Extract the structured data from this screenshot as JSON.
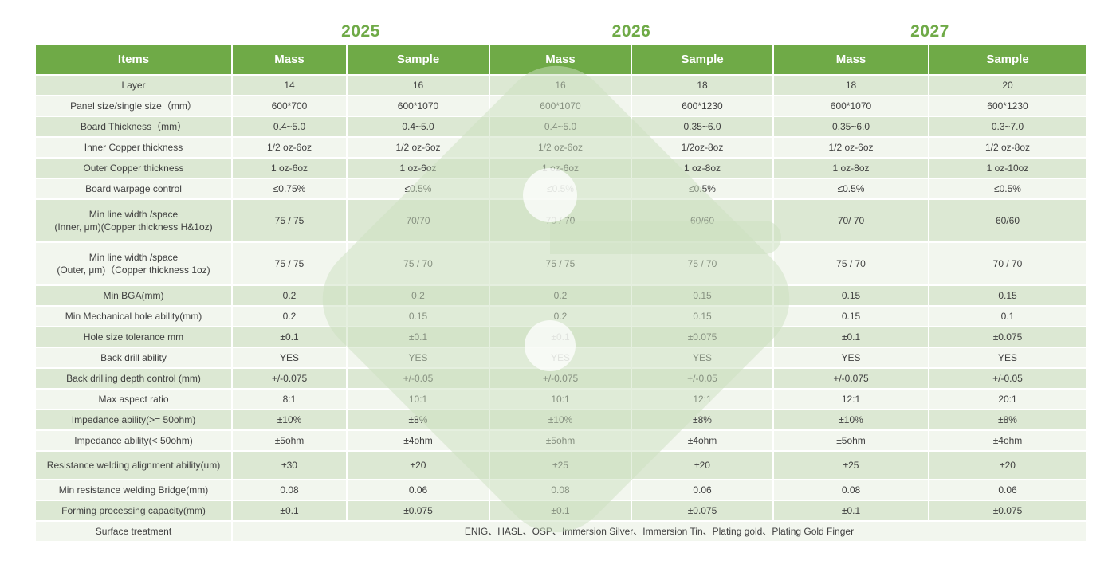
{
  "years": [
    {
      "label": "2025"
    },
    {
      "label": "2026"
    },
    {
      "label": "2027"
    }
  ],
  "colors": {
    "header_green": "#6faa47",
    "row_shaded": "#dce8d3",
    "row_light": "#f2f6ee",
    "text": "#404040"
  },
  "table": {
    "items_header": "Items",
    "col_headers": [
      "Mass",
      "Sample",
      "Mass",
      "Sample",
      "Mass",
      "Sample"
    ],
    "rows": [
      {
        "label": "Layer",
        "values": [
          "14",
          "16",
          "16",
          "18",
          "18",
          "20"
        ]
      },
      {
        "label": "Panel size/single size（mm）",
        "values": [
          "600*700",
          "600*1070",
          "600*1070",
          "600*1230",
          "600*1070",
          "600*1230"
        ]
      },
      {
        "label": "Board Thickness（mm）",
        "values": [
          "0.4~5.0",
          "0.4~5.0",
          "0.4~5.0",
          "0.35~6.0",
          "0.35~6.0",
          "0.3~7.0"
        ]
      },
      {
        "label": "Inner Copper thickness",
        "values": [
          "1/2 oz-6oz",
          "1/2 oz-6oz",
          "1/2 oz-6oz",
          "1/2oz-8oz",
          "1/2 oz-6oz",
          "1/2 oz-8oz"
        ]
      },
      {
        "label": "Outer Copper thickness",
        "values": [
          "1 oz-6oz",
          "1 oz-6oz",
          "1 oz-6oz",
          "1 oz-8oz",
          "1 oz-8oz",
          "1 oz-10oz"
        ]
      },
      {
        "label": "Board warpage control",
        "values": [
          "≤0.75%",
          "≤0.5%",
          "≤0.5%",
          "≤0.5%",
          "≤0.5%",
          "≤0.5%"
        ]
      },
      {
        "label": "Min line width /space\n(Inner, μm)(Copper thickness H&1oz)",
        "values": [
          "75 / 75",
          "70/70",
          "70 / 70",
          "60/60",
          "70/ 70",
          "60/60"
        ]
      },
      {
        "label": "Min line width /space\n(Outer, μm)（Copper thickness 1oz)",
        "values": [
          "75 / 75",
          "75 / 70",
          "75 / 75",
          "75 / 70",
          "75 / 70",
          "70 / 70"
        ]
      },
      {
        "label": "Min BGA(mm)",
        "values": [
          "0.2",
          "0.2",
          "0.2",
          "0.15",
          "0.15",
          "0.15"
        ]
      },
      {
        "label": "Min Mechanical hole ability(mm)",
        "values": [
          "0.2",
          "0.15",
          "0.2",
          "0.15",
          "0.15",
          "0.1"
        ]
      },
      {
        "label": "Hole size tolerance  mm",
        "values": [
          "±0.1",
          "±0.1",
          "±0.1",
          "±0.075",
          "±0.1",
          "±0.075"
        ]
      },
      {
        "label": "Back drill ability",
        "values": [
          "YES",
          "YES",
          "YES",
          "YES",
          "YES",
          "YES"
        ]
      },
      {
        "label": "Back drilling depth control (mm)",
        "values": [
          "+/-0.075",
          "+/-0.05",
          "+/-0.075",
          "+/-0.05",
          "+/-0.075",
          "+/-0.05"
        ]
      },
      {
        "label": "Max aspect ratio",
        "values": [
          "8:1",
          "10:1",
          "10:1",
          "12:1",
          "12:1",
          "20:1"
        ]
      },
      {
        "label": "Impedance ability(>= 50ohm)",
        "values": [
          "±10%",
          "±8%",
          "±10%",
          "±8%",
          "±10%",
          "±8%"
        ]
      },
      {
        "label": "Impedance ability(< 50ohm)",
        "values": [
          "±5ohm",
          "±4ohm",
          "±5ohm",
          "±4ohm",
          "±5ohm",
          "±4ohm"
        ]
      },
      {
        "label": "Resistance welding alignment ability(um)",
        "values": [
          "±30",
          "±20",
          "±25",
          "±20",
          "±25",
          "±20"
        ]
      },
      {
        "label": "Min resistance welding Bridge(mm)",
        "values": [
          "0.08",
          "0.06",
          "0.08",
          "0.06",
          "0.08",
          "0.06"
        ]
      },
      {
        "label": "Forming processing capacity(mm)",
        "values": [
          "±0.1",
          "±0.075",
          "±0.1",
          "±0.075",
          "±0.1",
          "±0.075"
        ]
      },
      {
        "label": "Surface treatment",
        "span_value": "ENIG、HASL、OSP、Immersion Silver、Immersion Tin、Plating gold、Plating Gold Finger"
      }
    ]
  }
}
